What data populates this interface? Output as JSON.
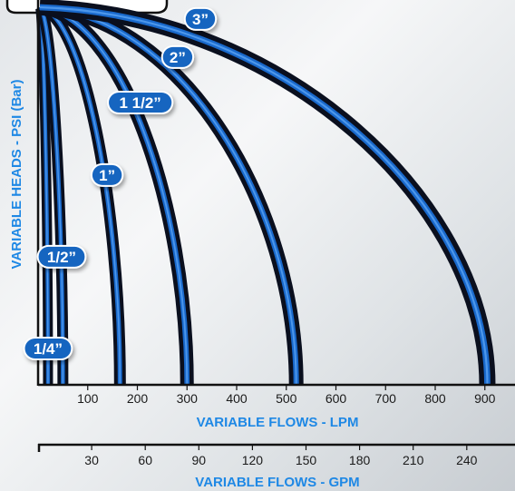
{
  "chart_data": {
    "type": "line",
    "title": "",
    "ylabel": "VARIABLE HEADS - PSI (Bar)",
    "xlabel": "VARIABLE FLOWS - LPM",
    "x_ticks": [
      100,
      200,
      300,
      400,
      500,
      600,
      700,
      800,
      900
    ],
    "xlim": [
      0,
      1000
    ],
    "secondary_axis": {
      "label": "VARIABLE FLOWS - GPM",
      "ticks": [
        30,
        60,
        90,
        120,
        150,
        180,
        210,
        240
      ],
      "xlim": [
        0,
        263
      ]
    },
    "series": [
      {
        "name": "1/4”",
        "max_flow": 20
      },
      {
        "name": "1/2”",
        "max_flow": 50
      },
      {
        "name": "1”",
        "max_flow": 165
      },
      {
        "name": "1 1/2”",
        "max_flow": 300
      },
      {
        "name": "2”",
        "max_flow": 520
      },
      {
        "name": "3”",
        "max_flow": 905
      }
    ],
    "grid": false,
    "legend": "inline labels",
    "colors": {
      "curve_core": "#1a6fd6",
      "curve_edge": "#0a0f1e",
      "label_bg": "#1565c0",
      "axis_text": "#1e88e5"
    }
  }
}
